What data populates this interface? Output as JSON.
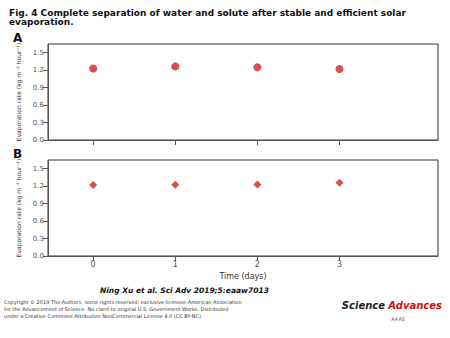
{
  "title": "Fig. 4 Complete separation of water and solute after stable and efficient solar evaporation.",
  "annotations": [
    {
      "text": "Ning Xu et al. Sci Adv 2019;5:eaaw7013"
    },
    {
      "text": "Copyright © 2019 The Authors, some rights reserved; exclusive licensee American Association\nfor the Advancement of Science. No claim to original U.S. Government Works. Distributed\nunder a Creative Commons Attribution NonCommercial License 4.0 (CC BY-NC)."
    },
    {
      "text": "Science",
      "color": "#222222"
    },
    {
      "text": "Advances",
      "color": "#cc1111"
    },
    {
      "text": "AAAS"
    }
  ],
  "chart_data": [
    {
      "type": "scatter",
      "title": "A",
      "x": [
        0,
        1,
        2,
        3
      ],
      "values": [
        1.23,
        1.265,
        1.25,
        1.22
      ],
      "color": "#cc2222",
      "marker": "circle",
      "ylabel": "Evaporation rate (kg m⁻² hour⁻¹)",
      "xlim": [
        -0.55,
        4.2
      ],
      "xticks": [
        0,
        1,
        2,
        3
      ],
      "ylim": [
        0.0,
        1.65
      ],
      "yticks": [
        {
          "value": 0.0,
          "label": "0.0"
        },
        0.3,
        0.6,
        0.9,
        1.2,
        1.5
      ],
      "grid": false,
      "tick_labels": "y"
    },
    {
      "type": "scatter",
      "title": "B",
      "x": [
        0,
        1,
        2,
        3
      ],
      "values": [
        1.22,
        1.225,
        1.23,
        1.26
      ],
      "color": "#cc2222",
      "marker": "diamond",
      "xlabel": "Time (days)",
      "ylabel": "Evaporation rate (kg m⁻² hour⁻¹)",
      "xlim": [
        -0.55,
        4.2
      ],
      "xticks": [
        0,
        1,
        2,
        3
      ],
      "ylim": [
        0.0,
        1.65
      ],
      "yticks": [
        {
          "value": 0.0,
          "label": "0.0"
        },
        0.3,
        0.6,
        0.9,
        1.2,
        1.5
      ],
      "grid": false
    }
  ]
}
